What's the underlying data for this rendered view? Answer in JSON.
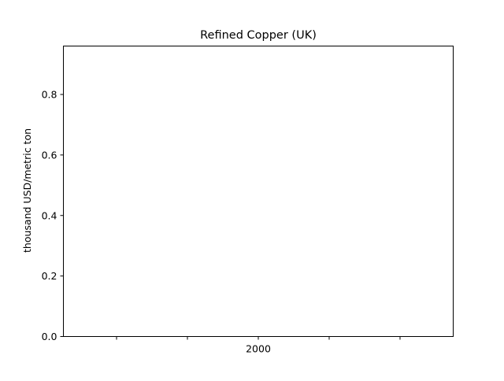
{
  "chart_data": {
    "type": "line",
    "title": "Refined Copper (UK)",
    "xlabel": "",
    "ylabel": "thousand USD/metric ton",
    "ylim": [
      0,
      0.96
    ],
    "yticks": [
      0.0,
      0.2,
      0.4,
      0.6,
      0.8
    ],
    "ytick_labels": [
      "0.0",
      "0.2",
      "0.4",
      "0.6",
      "0.8"
    ],
    "xticks": [
      {
        "label": ""
      },
      {
        "label": ""
      },
      {
        "label": "2000"
      },
      {
        "label": ""
      },
      {
        "label": ""
      }
    ],
    "series": [],
    "grid": false,
    "legend": "none"
  }
}
